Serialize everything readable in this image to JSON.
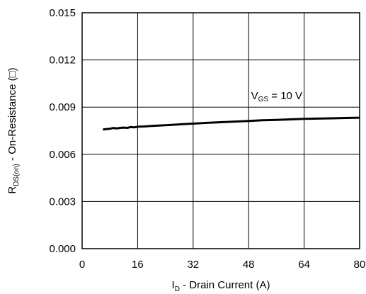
{
  "chart_data": {
    "type": "line",
    "xlabel": {
      "main": "I",
      "sub": "D",
      "rest": " - Drain Current (A)"
    },
    "ylabel": {
      "main": "R",
      "sub": "DS(on)",
      "rest": " - On-Resistance (□)"
    },
    "xlim": [
      0,
      80
    ],
    "ylim": [
      0.0,
      0.015
    ],
    "x_ticks": [
      "0",
      "16",
      "32",
      "48",
      "64",
      "80"
    ],
    "y_ticks": [
      "0.000",
      "0.003",
      "0.006",
      "0.009",
      "0.012",
      "0.015"
    ],
    "grid": true,
    "series": [
      {
        "x": [
          6,
          7,
          8,
          9,
          10,
          11,
          12,
          13,
          14,
          15,
          16,
          18,
          20,
          24,
          28,
          32,
          36,
          40,
          44,
          48,
          52,
          56,
          60,
          64,
          68,
          72,
          76,
          80
        ],
        "y": [
          0.00757,
          0.0076,
          0.00762,
          0.00767,
          0.00765,
          0.00768,
          0.0077,
          0.00768,
          0.00773,
          0.00771,
          0.00775,
          0.00777,
          0.0078,
          0.00785,
          0.0079,
          0.00795,
          0.008,
          0.00804,
          0.00808,
          0.00812,
          0.00816,
          0.00819,
          0.00822,
          0.00825,
          0.00827,
          0.00829,
          0.00831,
          0.00833
        ]
      }
    ],
    "annotation": {
      "main": "V",
      "sub": "GS",
      "rest": " = 10 V",
      "x": 48.7,
      "y": 0.0095
    }
  }
}
